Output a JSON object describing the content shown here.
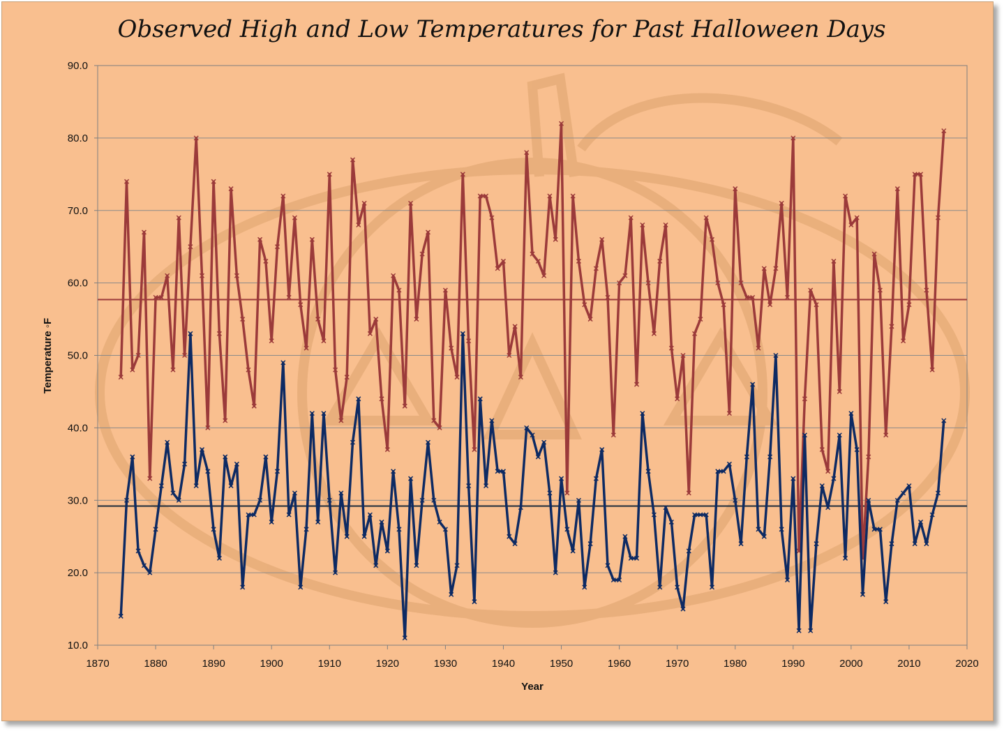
{
  "chart_data": {
    "type": "line",
    "title": "Observed High and Low Temperatures for Past Halloween Days",
    "xlabel": "Year",
    "ylabel": "Temperature ◦F",
    "xlim": [
      1870,
      2020
    ],
    "ylim": [
      10,
      90
    ],
    "xticks": [
      "1870",
      "1880",
      "1890",
      "1900",
      "1910",
      "1920",
      "1930",
      "1940",
      "1950",
      "1960",
      "1970",
      "1980",
      "1990",
      "2000",
      "2010",
      "2020"
    ],
    "yticks": [
      "10.0",
      "20.0",
      "30.0",
      "40.0",
      "50.0",
      "60.0",
      "70.0",
      "80.0",
      "90.0"
    ],
    "grid": "horizontal",
    "legend": "none",
    "x": [
      1874,
      1875,
      1876,
      1877,
      1878,
      1879,
      1880,
      1881,
      1882,
      1883,
      1884,
      1885,
      1886,
      1887,
      1888,
      1889,
      1890,
      1891,
      1892,
      1893,
      1894,
      1895,
      1896,
      1897,
      1898,
      1899,
      1900,
      1901,
      1902,
      1903,
      1904,
      1905,
      1906,
      1907,
      1908,
      1909,
      1910,
      1911,
      1912,
      1913,
      1914,
      1915,
      1916,
      1917,
      1918,
      1919,
      1920,
      1921,
      1922,
      1923,
      1924,
      1925,
      1926,
      1927,
      1928,
      1929,
      1930,
      1931,
      1932,
      1933,
      1934,
      1935,
      1936,
      1937,
      1938,
      1939,
      1940,
      1941,
      1942,
      1943,
      1944,
      1945,
      1946,
      1947,
      1948,
      1949,
      1950,
      1951,
      1952,
      1953,
      1954,
      1955,
      1956,
      1957,
      1958,
      1959,
      1960,
      1961,
      1962,
      1963,
      1964,
      1965,
      1966,
      1967,
      1968,
      1969,
      1970,
      1971,
      1972,
      1973,
      1974,
      1975,
      1976,
      1977,
      1978,
      1979,
      1980,
      1981,
      1982,
      1983,
      1984,
      1985,
      1986,
      1987,
      1988,
      1989,
      1990,
      1991,
      1992,
      1993,
      1994,
      1995,
      1996,
      1997,
      1998,
      1999,
      2000,
      2001,
      2002,
      2003,
      2004,
      2005,
      2006,
      2007,
      2008,
      2009,
      2010,
      2011,
      2012,
      2013,
      2014,
      2015,
      2016
    ],
    "series": [
      {
        "color": "#9b3a3a",
        "values": [
          47,
          74,
          48,
          50,
          67,
          33,
          58,
          58,
          61,
          48,
          69,
          50,
          65,
          80,
          61,
          40,
          74,
          53,
          41,
          73,
          61,
          55,
          48,
          43,
          66,
          63,
          52,
          65,
          72,
          58,
          69,
          57,
          51,
          66,
          55,
          52,
          75,
          48,
          41,
          47,
          77,
          68,
          71,
          53,
          55,
          44,
          37,
          61,
          59,
          43,
          71,
          55,
          64,
          67,
          41,
          40,
          59,
          51,
          47,
          75,
          52,
          37,
          72,
          72,
          69,
          62,
          63,
          50,
          54,
          47,
          78,
          64,
          63,
          61,
          72,
          66,
          82,
          31,
          72,
          63,
          57,
          55,
          62,
          66,
          58,
          39,
          60,
          61,
          69,
          46,
          68,
          60,
          53,
          63,
          68,
          51,
          44,
          50,
          31,
          53,
          55,
          69,
          66,
          60,
          57,
          42,
          73,
          60,
          58,
          58,
          51,
          62,
          57,
          62,
          71,
          58,
          80,
          23,
          44,
          59,
          57,
          37,
          34,
          63,
          45,
          72,
          68,
          69,
          22,
          36,
          64,
          59,
          39,
          54,
          73,
          52,
          57,
          75,
          75,
          59,
          48,
          69,
          81
        ]
      },
      {
        "color": "#0d2a63",
        "values": [
          14,
          30,
          36,
          23,
          21,
          20,
          26,
          32,
          38,
          31,
          30,
          35,
          53,
          32,
          37,
          34,
          26,
          22,
          36,
          32,
          35,
          18,
          28,
          28,
          30,
          36,
          27,
          34,
          49,
          28,
          31,
          18,
          26,
          42,
          27,
          42,
          30,
          20,
          31,
          25,
          38,
          44,
          25,
          28,
          21,
          27,
          23,
          34,
          26,
          11,
          33,
          21,
          30,
          38,
          30,
          27,
          26,
          17,
          21,
          53,
          32,
          16,
          44,
          32,
          41,
          34,
          34,
          25,
          24,
          29,
          40,
          39,
          36,
          38,
          31,
          20,
          33,
          26,
          23,
          30,
          18,
          24,
          33,
          37,
          21,
          19,
          19,
          25,
          22,
          22,
          42,
          34,
          28,
          18,
          29,
          27,
          18,
          15,
          23,
          28,
          28,
          28,
          18,
          34,
          34,
          35,
          30,
          24,
          36,
          46,
          26,
          25,
          36,
          50,
          26,
          19,
          33,
          12,
          39,
          12,
          24,
          32,
          29,
          33,
          39,
          22,
          42,
          37,
          17,
          30,
          26,
          26,
          16,
          24,
          30,
          31,
          32,
          24,
          27,
          24,
          28,
          31,
          41
        ]
      }
    ],
    "reference_lines": [
      {
        "y": 57.7,
        "color": "#9b3a3a"
      },
      {
        "y": 29.2,
        "color": "#1a2a3a"
      }
    ]
  }
}
